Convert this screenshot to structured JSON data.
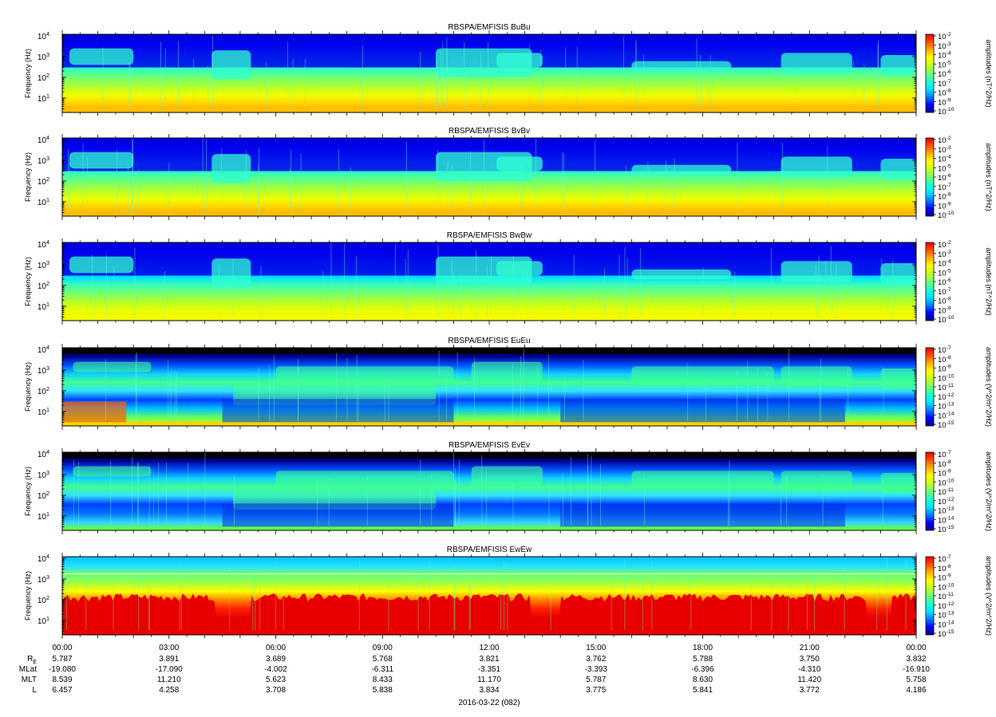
{
  "figure": {
    "date_label": "2016-03-22 (082)",
    "ephemeris": {
      "labels": [
        "RE",
        "MLat",
        "MLT",
        "L"
      ],
      "re_base": "R",
      "re_sub": "E",
      "columns": [
        {
          "RE": "5.787",
          "MLat": "-19.080",
          "MLT": "8.539",
          "L": "6.457"
        },
        {
          "RE": "3.891",
          "MLat": "-17.090",
          "MLT": "11.210",
          "L": "4.258"
        },
        {
          "RE": "3.689",
          "MLat": "-4.002",
          "MLT": "5.623",
          "L": "3.708"
        },
        {
          "RE": "5.768",
          "MLat": "-6.311",
          "MLT": "8.433",
          "L": "5.838"
        },
        {
          "RE": "3.821",
          "MLat": "-3.351",
          "MLT": "11.170",
          "L": "3.834"
        },
        {
          "RE": "3.762",
          "MLat": "-3.393",
          "MLT": "5.787",
          "L": "3.775"
        },
        {
          "RE": "5.788",
          "MLat": "-6.396",
          "MLT": "8.630",
          "L": "5.841"
        },
        {
          "RE": "3.750",
          "MLat": "-4.310",
          "MLT": "11.420",
          "L": "3.772"
        },
        {
          "RE": "3.832",
          "MLat": "-16.910",
          "MLT": "5.758",
          "L": "4.186"
        }
      ]
    },
    "colors": {
      "scale": [
        "#00008f",
        "#0000ff",
        "#0080ff",
        "#00e5ff",
        "#20ffd0",
        "#70ff70",
        "#c8ff20",
        "#ffff00",
        "#ffb000",
        "#ff5000",
        "#e80000"
      ]
    }
  },
  "chart_data": [
    {
      "type": "heatmap",
      "title": "RBSPA/EMFISIS  BuBu",
      "ylabel": "Frequency (Hz)",
      "y_scale": "log",
      "y_range": [
        2,
        12000
      ],
      "y_ticks": [
        {
          "base": "10",
          "exp": "1"
        },
        {
          "base": "10",
          "exp": "2"
        },
        {
          "base": "10",
          "exp": "3"
        },
        {
          "base": "10",
          "exp": "4"
        }
      ],
      "x_ticks": [
        "00:00",
        "03:00",
        "06:00",
        "09:00",
        "12:00",
        "15:00",
        "18:00",
        "21:00",
        "00:00"
      ],
      "x_range_hours": [
        0,
        24
      ],
      "colorbar": {
        "label": "amplitudes (nT^2/Hz)",
        "scale": "log",
        "ticks": [
          {
            "base": "10",
            "exp": "-2"
          },
          {
            "base": "10",
            "exp": "-3"
          },
          {
            "base": "10",
            "exp": "-4"
          },
          {
            "base": "10",
            "exp": "-5"
          },
          {
            "base": "10",
            "exp": "-6"
          },
          {
            "base": "10",
            "exp": "-7"
          },
          {
            "base": "10",
            "exp": "-8"
          },
          {
            "base": "10",
            "exp": "-9"
          },
          {
            "base": "10",
            "exp": "-10"
          }
        ]
      },
      "grid": false
    },
    {
      "type": "heatmap",
      "title": "RBSPA/EMFISIS  BvBv",
      "ylabel": "Frequency (Hz)",
      "y_scale": "log",
      "y_range": [
        2,
        12000
      ],
      "y_ticks": [
        {
          "base": "10",
          "exp": "1"
        },
        {
          "base": "10",
          "exp": "2"
        },
        {
          "base": "10",
          "exp": "3"
        },
        {
          "base": "10",
          "exp": "4"
        }
      ],
      "x_ticks": [
        "00:00",
        "03:00",
        "06:00",
        "09:00",
        "12:00",
        "15:00",
        "18:00",
        "21:00",
        "00:00"
      ],
      "x_range_hours": [
        0,
        24
      ],
      "colorbar": {
        "label": "amplitudes (nT^2/Hz)",
        "scale": "log",
        "ticks": [
          {
            "base": "10",
            "exp": "-2"
          },
          {
            "base": "10",
            "exp": "-3"
          },
          {
            "base": "10",
            "exp": "-4"
          },
          {
            "base": "10",
            "exp": "-5"
          },
          {
            "base": "10",
            "exp": "-6"
          },
          {
            "base": "10",
            "exp": "-7"
          },
          {
            "base": "10",
            "exp": "-8"
          },
          {
            "base": "10",
            "exp": "-9"
          },
          {
            "base": "10",
            "exp": "-10"
          }
        ]
      },
      "grid": false
    },
    {
      "type": "heatmap",
      "title": "RBSPA/EMFISIS  BwBw",
      "ylabel": "Frequency (Hz)",
      "y_scale": "log",
      "y_range": [
        2,
        12000
      ],
      "y_ticks": [
        {
          "base": "10",
          "exp": "1"
        },
        {
          "base": "10",
          "exp": "2"
        },
        {
          "base": "10",
          "exp": "3"
        },
        {
          "base": "10",
          "exp": "4"
        }
      ],
      "x_ticks": [
        "00:00",
        "03:00",
        "06:00",
        "09:00",
        "12:00",
        "15:00",
        "18:00",
        "21:00",
        "00:00"
      ],
      "x_range_hours": [
        0,
        24
      ],
      "colorbar": {
        "label": "amplitudes (nT^2/Hz)",
        "scale": "log",
        "ticks": [
          {
            "base": "10",
            "exp": "-2"
          },
          {
            "base": "10",
            "exp": "-3"
          },
          {
            "base": "10",
            "exp": "-4"
          },
          {
            "base": "10",
            "exp": "-5"
          },
          {
            "base": "10",
            "exp": "-6"
          },
          {
            "base": "10",
            "exp": "-7"
          },
          {
            "base": "10",
            "exp": "-8"
          },
          {
            "base": "10",
            "exp": "-9"
          },
          {
            "base": "10",
            "exp": "-10"
          }
        ]
      },
      "grid": false
    },
    {
      "type": "heatmap",
      "title": "RBSPA/EMFISIS  EuEu",
      "ylabel": "Frequency (Hz)",
      "y_scale": "log",
      "y_range": [
        2,
        12000
      ],
      "y_ticks": [
        {
          "base": "10",
          "exp": "1"
        },
        {
          "base": "10",
          "exp": "2"
        },
        {
          "base": "10",
          "exp": "3"
        },
        {
          "base": "10",
          "exp": "4"
        }
      ],
      "x_ticks": [
        "00:00",
        "03:00",
        "06:00",
        "09:00",
        "12:00",
        "15:00",
        "18:00",
        "21:00",
        "00:00"
      ],
      "x_range_hours": [
        0,
        24
      ],
      "colorbar": {
        "label": "amplitudes (V^2/m^2/Hz)",
        "scale": "log",
        "ticks": [
          {
            "base": "10",
            "exp": "-7"
          },
          {
            "base": "10",
            "exp": "-8"
          },
          {
            "base": "10",
            "exp": "-9"
          },
          {
            "base": "10",
            "exp": "-10"
          },
          {
            "base": "10",
            "exp": "-11"
          },
          {
            "base": "10",
            "exp": "-12"
          },
          {
            "base": "10",
            "exp": "-13"
          },
          {
            "base": "10",
            "exp": "-14"
          },
          {
            "base": "10",
            "exp": "-15"
          }
        ]
      },
      "grid": false
    },
    {
      "type": "heatmap",
      "title": "RBSPA/EMFISIS  EvEv",
      "ylabel": "Frequency (Hz)",
      "y_scale": "log",
      "y_range": [
        2,
        12000
      ],
      "y_ticks": [
        {
          "base": "10",
          "exp": "1"
        },
        {
          "base": "10",
          "exp": "2"
        },
        {
          "base": "10",
          "exp": "3"
        },
        {
          "base": "10",
          "exp": "4"
        }
      ],
      "x_ticks": [
        "00:00",
        "03:00",
        "06:00",
        "09:00",
        "12:00",
        "15:00",
        "18:00",
        "21:00",
        "00:00"
      ],
      "x_range_hours": [
        0,
        24
      ],
      "colorbar": {
        "label": "amplitudes (V^2/m^2/Hz)",
        "scale": "log",
        "ticks": [
          {
            "base": "10",
            "exp": "-7"
          },
          {
            "base": "10",
            "exp": "-8"
          },
          {
            "base": "10",
            "exp": "-9"
          },
          {
            "base": "10",
            "exp": "-10"
          },
          {
            "base": "10",
            "exp": "-11"
          },
          {
            "base": "10",
            "exp": "-12"
          },
          {
            "base": "10",
            "exp": "-13"
          },
          {
            "base": "10",
            "exp": "-14"
          },
          {
            "base": "10",
            "exp": "-15"
          }
        ]
      },
      "grid": false
    },
    {
      "type": "heatmap",
      "title": "RBSPA/EMFISIS  EwEw",
      "ylabel": "Frequency (Hz)",
      "y_scale": "log",
      "y_range": [
        2,
        12000
      ],
      "y_ticks": [
        {
          "base": "10",
          "exp": "1"
        },
        {
          "base": "10",
          "exp": "2"
        },
        {
          "base": "10",
          "exp": "3"
        },
        {
          "base": "10",
          "exp": "4"
        }
      ],
      "x_ticks": [
        "00:00",
        "03:00",
        "06:00",
        "09:00",
        "12:00",
        "15:00",
        "18:00",
        "21:00",
        "00:00"
      ],
      "x_range_hours": [
        0,
        24
      ],
      "colorbar": {
        "label": "amplitudes (V^2/m^2/Hz)",
        "scale": "log",
        "ticks": [
          {
            "base": "10",
            "exp": "-7"
          },
          {
            "base": "10",
            "exp": "-8"
          },
          {
            "base": "10",
            "exp": "-9"
          },
          {
            "base": "10",
            "exp": "-10"
          },
          {
            "base": "10",
            "exp": "-11"
          },
          {
            "base": "10",
            "exp": "-12"
          },
          {
            "base": "10",
            "exp": "-13"
          },
          {
            "base": "10",
            "exp": "-14"
          },
          {
            "base": "10",
            "exp": "-15"
          }
        ]
      },
      "grid": false
    }
  ]
}
